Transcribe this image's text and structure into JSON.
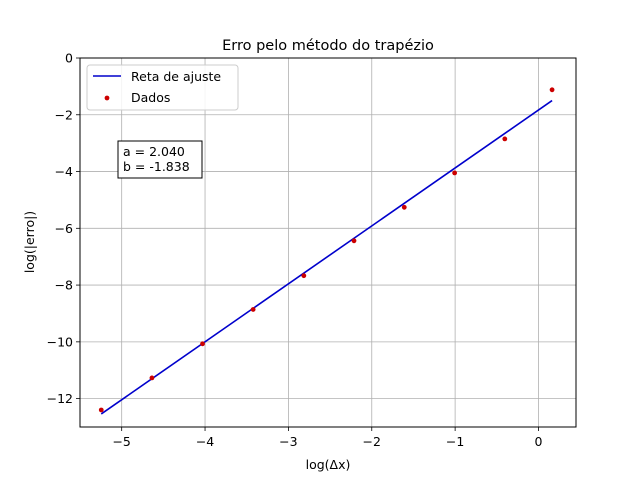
{
  "chart_data": {
    "type": "scatter",
    "title": "Erro pelo método do trapézio",
    "xlabel": "log(Δx)",
    "ylabel": "log(|erro|)",
    "xlim": [
      -5.5,
      0.45
    ],
    "ylim": [
      -13,
      0
    ],
    "grid": true,
    "legend_placement": "top-left",
    "xticks": [
      -5,
      -4,
      -3,
      -2,
      -1,
      0
    ],
    "xtick_labels": [
      "−5",
      "−4",
      "−3",
      "−2",
      "−1",
      "0"
    ],
    "yticks": [
      -12,
      -10,
      -8,
      -6,
      -4,
      -2,
      0
    ],
    "ytick_labels": [
      "−12",
      "−10",
      "−8",
      "−6",
      "−4",
      "−2",
      "0"
    ],
    "series": [
      {
        "name": "Reta de ajuste",
        "kind": "line",
        "color": "#0000cc",
        "x": [
          -5.245,
          0.163
        ],
        "y": [
          -12.54,
          -1.5
        ]
      },
      {
        "name": "Dados",
        "kind": "scatter",
        "color": "#cc0000",
        "x": [
          -5.245,
          -4.637,
          -4.03,
          -3.423,
          -2.815,
          -2.213,
          -1.61,
          -1.006,
          -0.404,
          0.163
        ],
        "y": [
          -12.4,
          -11.27,
          -10.07,
          -8.86,
          -7.67,
          -6.44,
          -5.26,
          -4.05,
          -2.85,
          -1.12
        ]
      }
    ],
    "annotation": {
      "line1": "a = 2.040",
      "line2": "b = -1.838"
    }
  }
}
